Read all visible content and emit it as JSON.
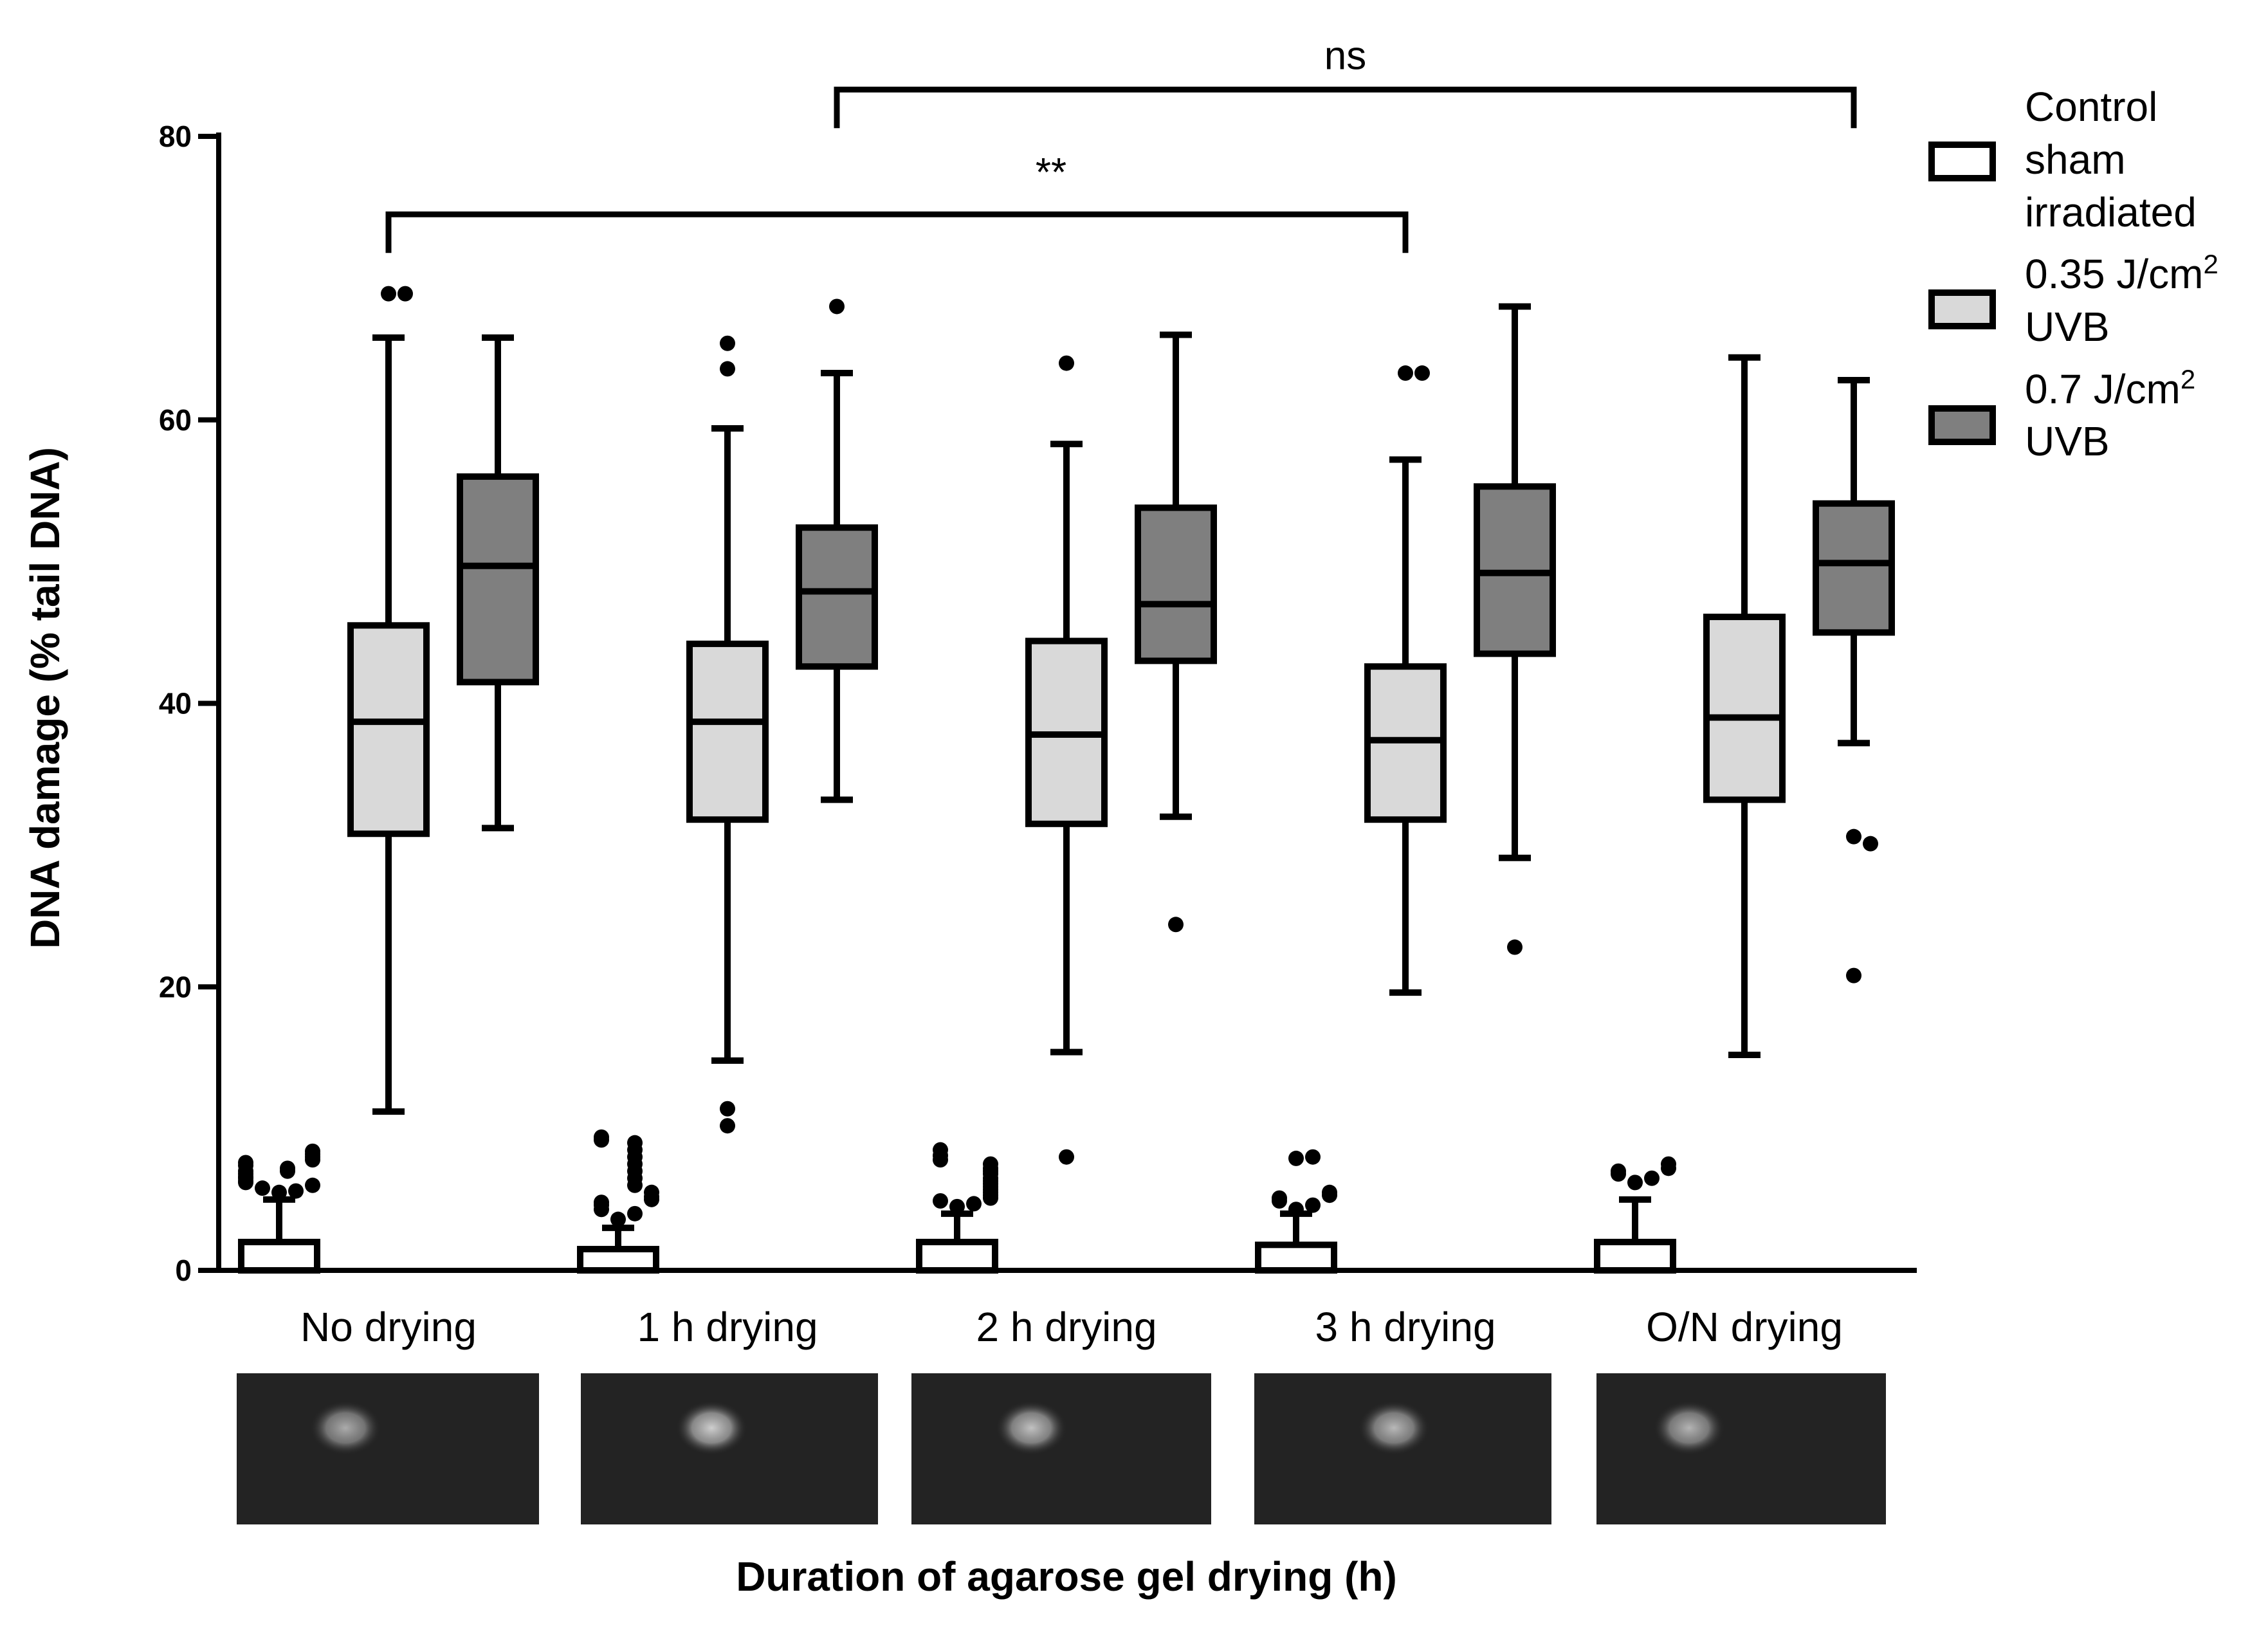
{
  "chart_data": {
    "type": "boxplot",
    "xlabel": "Duration of agarose gel drying  (h)",
    "ylabel": "DNA damage (% tail DNA)",
    "ylim": [
      0,
      80
    ],
    "yticks": [
      0,
      20,
      40,
      60,
      80
    ],
    "categories": [
      "No drying",
      "1 h drying",
      "2 h drying",
      "3 h drying",
      "O/N drying"
    ],
    "legend_position": "right",
    "legend": [
      {
        "name": "Control sham irradiated",
        "lines": [
          "Control",
          "sham",
          "irradiated"
        ],
        "sup": "",
        "sup_line": 0,
        "fill": "#ffffff"
      },
      {
        "name": "0.35 J/cm2 UVB",
        "lines": [
          "0.35 J/cm",
          "UVB"
        ],
        "sup": "2",
        "sup_line": 0,
        "fill": "#d9d9d9"
      },
      {
        "name": "0.7 J/cm2 UVB",
        "lines": [
          "0.7 J/cm",
          "UVB"
        ],
        "sup": "2",
        "sup_line": 0,
        "fill": "#7f7f7f"
      }
    ],
    "series": [
      {
        "name": "Control sham irradiated",
        "fill": "#ffffff",
        "boxes": [
          {
            "q1": 0,
            "median": 0,
            "q3": 2.0,
            "whisker_low": 0,
            "whisker_high": 5.0,
            "outliers": [
              5.5,
              5.6,
              5.8,
              6.0,
              6.2,
              6.3,
              6.5,
              6.6,
              6.8,
              7.0,
              7.0,
              7.2,
              7.4,
              7.6,
              7.8,
              8.0,
              8.2,
              8.4
            ]
          },
          {
            "q1": 0,
            "median": 0,
            "q3": 1.5,
            "whisker_low": 0,
            "whisker_high": 3.0,
            "outliers": [
              3.6,
              4.0,
              4.3,
              4.6,
              4.8,
              5.0,
              5.2,
              5.5,
              6.0,
              6.5,
              7.0,
              7.5,
              8.0,
              8.5,
              9.0,
              9.2,
              9.4
            ]
          },
          {
            "q1": 0,
            "median": 0,
            "q3": 2.0,
            "whisker_low": 0,
            "whisker_high": 4.0,
            "outliers": [
              4.5,
              4.7,
              4.9,
              5.1,
              5.3,
              5.5,
              5.7,
              5.9,
              6.1,
              6.3,
              6.5,
              6.8,
              7.0,
              7.2,
              7.5,
              7.8,
              8.1,
              8.5
            ]
          },
          {
            "q1": 0,
            "median": 0,
            "q3": 1.8,
            "whisker_low": 0,
            "whisker_high": 4.0,
            "outliers": [
              4.3,
              4.6,
              4.9,
              5.1,
              5.3,
              5.5,
              7.9,
              8.0
            ]
          },
          {
            "q1": 0,
            "median": 0,
            "q3": 2.0,
            "whisker_low": 0,
            "whisker_high": 5.0,
            "outliers": [
              6.2,
              6.5,
              6.8,
              7.0,
              7.2,
              7.5
            ]
          }
        ]
      },
      {
        "name": "0.35 J/cm2 UVB",
        "fill": "#d9d9d9",
        "boxes": [
          {
            "q1": 30.8,
            "median": 38.7,
            "q3": 45.5,
            "whisker_low": 11.2,
            "whisker_high": 65.8,
            "outliers": [
              68.9,
              68.9
            ]
          },
          {
            "q1": 31.8,
            "median": 38.7,
            "q3": 44.2,
            "whisker_low": 14.8,
            "whisker_high": 59.4,
            "outliers": [
              63.6,
              65.4,
              10.2,
              11.4
            ]
          },
          {
            "q1": 31.5,
            "median": 37.8,
            "q3": 44.4,
            "whisker_low": 15.4,
            "whisker_high": 58.3,
            "outliers": [
              64.0,
              8.0
            ]
          },
          {
            "q1": 31.8,
            "median": 37.4,
            "q3": 42.6,
            "whisker_low": 19.6,
            "whisker_high": 57.2,
            "outliers": [
              63.3,
              63.3
            ]
          },
          {
            "q1": 33.2,
            "median": 39.0,
            "q3": 46.1,
            "whisker_low": 15.2,
            "whisker_high": 64.4,
            "outliers": []
          }
        ]
      },
      {
        "name": "0.7 J/cm2 UVB",
        "fill": "#7f7f7f",
        "boxes": [
          {
            "q1": 41.5,
            "median": 49.7,
            "q3": 56.0,
            "whisker_low": 31.2,
            "whisker_high": 65.8,
            "outliers": []
          },
          {
            "q1": 42.6,
            "median": 47.9,
            "q3": 52.4,
            "whisker_low": 33.2,
            "whisker_high": 63.3,
            "outliers": [
              68.0
            ]
          },
          {
            "q1": 43.0,
            "median": 47.0,
            "q3": 53.8,
            "whisker_low": 32.0,
            "whisker_high": 66.0,
            "outliers": [
              24.4
            ]
          },
          {
            "q1": 43.5,
            "median": 49.2,
            "q3": 55.3,
            "whisker_low": 29.1,
            "whisker_high": 68.0,
            "outliers": [
              22.8
            ]
          },
          {
            "q1": 45.0,
            "median": 49.9,
            "q3": 54.1,
            "whisker_low": 37.2,
            "whisker_high": 62.8,
            "outliers": [
              30.6,
              30.1,
              20.8
            ]
          }
        ]
      }
    ],
    "annotations": [
      {
        "text": "**",
        "from_category": 0,
        "from_series": 1,
        "to_category": 3,
        "to_series": 1,
        "y": 74.5
      },
      {
        "text": "ns",
        "from_category": 1,
        "from_series": 2,
        "to_category": 4,
        "to_series": 2,
        "y": 83.3
      }
    ],
    "comet_images": [
      {
        "category": 0,
        "spot": 0.36,
        "brightness": 0.62
      },
      {
        "category": 1,
        "spot": 0.44,
        "brightness": 0.78
      },
      {
        "category": 2,
        "spot": 0.4,
        "brightness": 0.72
      },
      {
        "category": 3,
        "spot": 0.47,
        "brightness": 0.68
      },
      {
        "category": 4,
        "spot": 0.32,
        "brightness": 0.66
      }
    ]
  }
}
